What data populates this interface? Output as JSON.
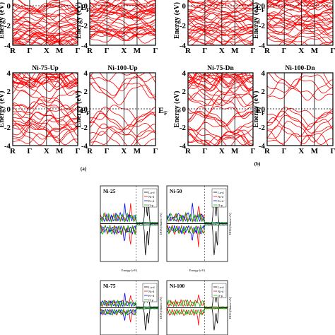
{
  "figure": {
    "part_labels": [
      "(a)",
      "(b)"
    ],
    "fermi_label": "E",
    "fermi_sub": "F"
  },
  "chart_data": [
    {
      "type": "line",
      "title": "",
      "xlabel": "",
      "ylabel": "Energy (eV)",
      "xticks": [
        "R",
        "Γ",
        "X",
        "M",
        "Γ"
      ],
      "yticks": [
        "-4",
        "-2",
        "0"
      ],
      "ylim": [
        -4,
        1
      ],
      "color": "#ff0000",
      "note": "top-left band panel (a), cropped at top"
    },
    {
      "type": "line",
      "title": "",
      "xlabel": "",
      "ylabel": "Energy (eV)",
      "xticks": [
        "R",
        "Γ",
        "X",
        "M",
        "Γ"
      ],
      "yticks": [
        "-4",
        "-2",
        "0"
      ],
      "ylim": [
        -4,
        1
      ],
      "color": "#ff0000"
    },
    {
      "type": "line",
      "title": "Ni-75-Up",
      "xlabel": "",
      "ylabel": "Energy (eV)",
      "xticks": [
        "R",
        "Γ",
        "X",
        "M",
        "Γ"
      ],
      "yticks": [
        "-4",
        "-2",
        "0",
        "2",
        "4"
      ],
      "ylim": [
        -4,
        4
      ],
      "color": "#ff0000"
    },
    {
      "type": "line",
      "title": "Ni-100-Up",
      "xlabel": "",
      "ylabel": "Energy (eV)",
      "xticks": [
        "R",
        "Γ",
        "X",
        "M",
        "Γ"
      ],
      "yticks": [
        "-4",
        "-2",
        "0",
        "2",
        "4"
      ],
      "ylim": [
        -4,
        4
      ],
      "color": "#ff0000"
    },
    {
      "type": "line",
      "title": "",
      "xlabel": "",
      "ylabel": "Energy (eV)",
      "xticks": [
        "R",
        "Γ",
        "X",
        "M",
        "Γ"
      ],
      "yticks": [
        "-4",
        "-2",
        "0"
      ],
      "ylim": [
        -4,
        1
      ],
      "color": "#ff0000"
    },
    {
      "type": "line",
      "title": "",
      "xlabel": "",
      "ylabel": "Energy (eV)",
      "xticks": [
        "R",
        "Γ",
        "X",
        "M",
        "Γ"
      ],
      "yticks": [
        "-4",
        "-2",
        "0"
      ],
      "ylim": [
        -4,
        1
      ],
      "color": "#ff0000"
    },
    {
      "type": "line",
      "title": "Ni-75-Dn",
      "xlabel": "",
      "ylabel": "Energy (eV)",
      "xticks": [
        "R",
        "Γ",
        "X",
        "M",
        "Γ"
      ],
      "yticks": [
        "-4",
        "-2",
        "0",
        "2",
        "4"
      ],
      "ylim": [
        -4,
        4
      ],
      "color": "#ff0000"
    },
    {
      "type": "line",
      "title": "Ni-100-Dn",
      "xlabel": "",
      "ylabel": "Energy (eV)",
      "xticks": [
        "R",
        "Γ",
        "X",
        "M",
        "Γ"
      ],
      "yticks": [
        "-4",
        "-2",
        "0",
        "2",
        "4"
      ],
      "ylim": [
        -4,
        4
      ],
      "color": "#ff0000"
    },
    {
      "type": "line",
      "title": "Ni-25",
      "xlabel": "Energy (eV)",
      "ylabel": "DOS (States/ eV)",
      "legend": [
        "La-d",
        "Ni-d",
        "Fe-d",
        "O-p"
      ],
      "legend_colors": [
        "#000000",
        "#ff0000",
        "#0000ff",
        "#00bb00"
      ]
    },
    {
      "type": "line",
      "title": "Ni-50",
      "xlabel": "Energy (eV)",
      "ylabel": "DOS (States/ eV)",
      "legend": [
        "La-d",
        "Ni-d",
        "Fe-d",
        "O-p"
      ],
      "legend_colors": [
        "#000000",
        "#ff0000",
        "#0000ff",
        "#00bb00"
      ]
    },
    {
      "type": "line",
      "title": "Ni-75",
      "xlabel": "",
      "ylabel": "DOS (States/ eV)",
      "legend": [
        "La-d",
        "Ni-d",
        "Fe-d",
        "O-p"
      ],
      "legend_colors": [
        "#000000",
        "#ff0000",
        "#0000ff",
        "#00bb00"
      ]
    },
    {
      "type": "line",
      "title": "Ni-100",
      "xlabel": "",
      "ylabel": "DOS (States/ eV)",
      "legend": [
        "La-d",
        "Ni-d",
        "O-p"
      ],
      "legend_colors": [
        "#000000",
        "#ff0000",
        "#00bb00"
      ]
    }
  ]
}
